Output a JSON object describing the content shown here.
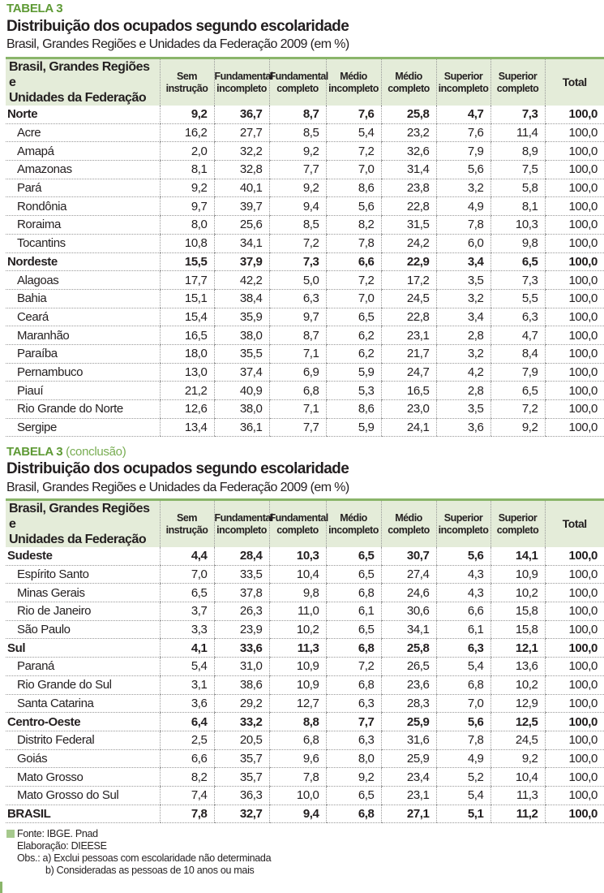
{
  "table1": {
    "label": "TABELA 3",
    "title": "Distribuição dos ocupados segundo escolaridade",
    "subtitle": "Brasil, Grandes Regiões e Unidades da Federação 2009 (em %)",
    "rows": [
      {
        "name": "Norte",
        "region": true,
        "values": [
          "9,2",
          "36,7",
          "8,7",
          "7,6",
          "25,8",
          "4,7",
          "7,3",
          "100,0"
        ]
      },
      {
        "name": "Acre",
        "values": [
          "16,2",
          "27,7",
          "8,5",
          "5,4",
          "23,2",
          "7,6",
          "11,4",
          "100,0"
        ]
      },
      {
        "name": "Amapá",
        "values": [
          "2,0",
          "32,2",
          "9,2",
          "7,2",
          "32,6",
          "7,9",
          "8,9",
          "100,0"
        ]
      },
      {
        "name": "Amazonas",
        "values": [
          "8,1",
          "32,8",
          "7,7",
          "7,0",
          "31,4",
          "5,6",
          "7,5",
          "100,0"
        ]
      },
      {
        "name": "Pará",
        "values": [
          "9,2",
          "40,1",
          "9,2",
          "8,6",
          "23,8",
          "3,2",
          "5,8",
          "100,0"
        ]
      },
      {
        "name": "Rondônia",
        "values": [
          "9,7",
          "39,7",
          "9,4",
          "5,6",
          "22,8",
          "4,9",
          "8,1",
          "100,0"
        ]
      },
      {
        "name": "Roraima",
        "values": [
          "8,0",
          "25,6",
          "8,5",
          "8,2",
          "31,5",
          "7,8",
          "10,3",
          "100,0"
        ]
      },
      {
        "name": "Tocantins",
        "values": [
          "10,8",
          "34,1",
          "7,2",
          "7,8",
          "24,2",
          "6,0",
          "9,8",
          "100,0"
        ]
      },
      {
        "name": "Nordeste",
        "region": true,
        "values": [
          "15,5",
          "37,9",
          "7,3",
          "6,6",
          "22,9",
          "3,4",
          "6,5",
          "100,0"
        ]
      },
      {
        "name": "Alagoas",
        "values": [
          "17,7",
          "42,2",
          "5,0",
          "7,2",
          "17,2",
          "3,5",
          "7,3",
          "100,0"
        ]
      },
      {
        "name": "Bahia",
        "values": [
          "15,1",
          "38,4",
          "6,3",
          "7,0",
          "24,5",
          "3,2",
          "5,5",
          "100,0"
        ]
      },
      {
        "name": "Ceará",
        "values": [
          "15,4",
          "35,9",
          "9,7",
          "6,5",
          "22,8",
          "3,4",
          "6,3",
          "100,0"
        ]
      },
      {
        "name": "Maranhão",
        "values": [
          "16,5",
          "38,0",
          "8,7",
          "6,2",
          "23,1",
          "2,8",
          "4,7",
          "100,0"
        ]
      },
      {
        "name": "Paraíba",
        "values": [
          "18,0",
          "35,5",
          "7,1",
          "6,2",
          "21,7",
          "3,2",
          "8,4",
          "100,0"
        ]
      },
      {
        "name": "Pernambuco",
        "values": [
          "13,0",
          "37,4",
          "6,9",
          "5,9",
          "24,7",
          "4,2",
          "7,9",
          "100,0"
        ]
      },
      {
        "name": "Piauí",
        "values": [
          "21,2",
          "40,9",
          "6,8",
          "5,3",
          "16,5",
          "2,8",
          "6,5",
          "100,0"
        ]
      },
      {
        "name": "Rio Grande do Norte",
        "values": [
          "12,6",
          "38,0",
          "7,1",
          "8,6",
          "23,0",
          "3,5",
          "7,2",
          "100,0"
        ]
      },
      {
        "name": "Sergipe",
        "values": [
          "13,4",
          "36,1",
          "7,7",
          "5,9",
          "24,1",
          "3,6",
          "9,2",
          "100,0"
        ]
      }
    ]
  },
  "table2": {
    "label": "TABELA 3",
    "label_suffix": "(conclusão)",
    "title": "Distribuição dos ocupados segundo escolaridade",
    "subtitle": "Brasil, Grandes Regiões e Unidades da Federação 2009 (em %)",
    "rows": [
      {
        "name": "Sudeste",
        "region": true,
        "values": [
          "4,4",
          "28,4",
          "10,3",
          "6,5",
          "30,7",
          "5,6",
          "14,1",
          "100,0"
        ]
      },
      {
        "name": "Espírito Santo",
        "values": [
          "7,0",
          "33,5",
          "10,4",
          "6,5",
          "27,4",
          "4,3",
          "10,9",
          "100,0"
        ]
      },
      {
        "name": "Minas Gerais",
        "values": [
          "6,5",
          "37,8",
          "9,8",
          "6,8",
          "24,6",
          "4,3",
          "10,2",
          "100,0"
        ]
      },
      {
        "name": "Rio de Janeiro",
        "values": [
          "3,7",
          "26,3",
          "11,0",
          "6,1",
          "30,6",
          "6,6",
          "15,8",
          "100,0"
        ]
      },
      {
        "name": "São Paulo",
        "values": [
          "3,3",
          "23,9",
          "10,2",
          "6,5",
          "34,1",
          "6,1",
          "15,8",
          "100,0"
        ]
      },
      {
        "name": "Sul",
        "region": true,
        "values": [
          "4,1",
          "33,6",
          "11,3",
          "6,8",
          "25,8",
          "6,3",
          "12,1",
          "100,0"
        ]
      },
      {
        "name": "Paraná",
        "values": [
          "5,4",
          "31,0",
          "10,9",
          "7,2",
          "26,5",
          "5,4",
          "13,6",
          "100,0"
        ]
      },
      {
        "name": "Rio Grande do Sul",
        "values": [
          "3,1",
          "38,6",
          "10,9",
          "6,8",
          "23,6",
          "6,8",
          "10,2",
          "100,0"
        ]
      },
      {
        "name": "Santa Catarina",
        "values": [
          "3,6",
          "29,2",
          "12,7",
          "6,3",
          "28,3",
          "7,0",
          "12,9",
          "100,0"
        ]
      },
      {
        "name": "Centro-Oeste",
        "region": true,
        "values": [
          "6,4",
          "33,2",
          "8,8",
          "7,7",
          "25,9",
          "5,6",
          "12,5",
          "100,0"
        ]
      },
      {
        "name": "Distrito Federal",
        "values": [
          "2,5",
          "20,5",
          "6,8",
          "6,3",
          "31,6",
          "7,8",
          "24,5",
          "100,0"
        ]
      },
      {
        "name": "Goiás",
        "values": [
          "6,6",
          "35,7",
          "9,6",
          "8,0",
          "25,9",
          "4,9",
          "9,2",
          "100,0"
        ]
      },
      {
        "name": "Mato Grosso",
        "values": [
          "8,2",
          "35,7",
          "7,8",
          "9,2",
          "23,4",
          "5,2",
          "10,4",
          "100,0"
        ]
      },
      {
        "name": "Mato Grosso do Sul",
        "values": [
          "7,4",
          "36,3",
          "10,0",
          "6,5",
          "23,1",
          "5,4",
          "11,3",
          "100,0"
        ]
      },
      {
        "name": "BRASIL",
        "region": true,
        "values": [
          "7,8",
          "32,7",
          "9,4",
          "6,8",
          "27,1",
          "5,1",
          "11,2",
          "100,0"
        ]
      }
    ]
  },
  "columns": [
    [
      "Brasil, Grandes Regiões e",
      "Unidades da Federação"
    ],
    [
      "Sem",
      "instrução"
    ],
    [
      "Fundamental",
      "incompleto"
    ],
    [
      "Fundamental",
      "completo"
    ],
    [
      "Médio",
      "incompleto"
    ],
    [
      "Médio",
      "completo"
    ],
    [
      "Superior",
      "incompleto"
    ],
    [
      "Superior",
      "completo"
    ],
    [
      "Total"
    ]
  ],
  "notes": {
    "fonte": "Fonte: IBGE. Pnad",
    "elaboracao": "Elaboração: DIEESE",
    "obs_a": "Obs.: a) Exclui pessoas com escolaridade não determinada",
    "obs_b": "b) Consideradas as pessoas de 10 anos ou mais"
  },
  "colors": {
    "accent": "#5e9a35",
    "header_bg": "#e4ecd9",
    "rule": "#8ab56a"
  }
}
